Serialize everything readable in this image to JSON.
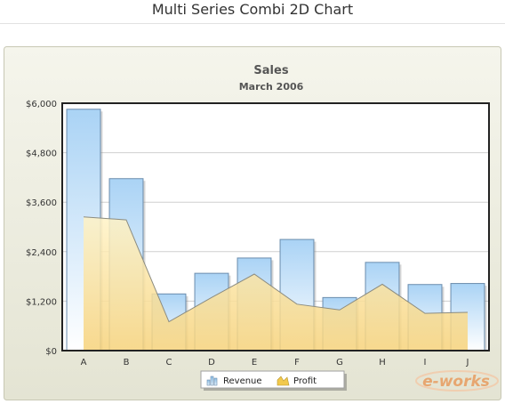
{
  "page": {
    "title": "Multi Series Combi 2D Chart"
  },
  "chart_data": {
    "type": "bar",
    "title": "Sales",
    "subtitle": "March 2006",
    "categories": [
      "A",
      "B",
      "C",
      "D",
      "E",
      "F",
      "G",
      "H",
      "I",
      "J"
    ],
    "series": [
      {
        "name": "Revenue",
        "render": "column",
        "values": [
          5854,
          4171,
          1375,
          1875,
          2246,
          2696,
          1287,
          2140,
          1603,
          1628
        ]
      },
      {
        "name": "Profit",
        "render": "area",
        "values": [
          3242,
          3171,
          700,
          1287,
          1856,
          1126,
          987,
          1610,
          903,
          928
        ]
      }
    ],
    "y_ticks": [
      "$0",
      "$1,200",
      "$2,400",
      "$3,600",
      "$4,800",
      "$6,000"
    ],
    "ylim": [
      0,
      6000
    ],
    "grid": true,
    "legend_position": "bottom",
    "colors": {
      "revenue_top": "#aad3f5",
      "revenue_bottom": "#ffffff",
      "revenue_border": "#6b8cad",
      "profit_top": "#fff3c7",
      "profit_bottom": "#f6d27a",
      "profit_line": "#8c8c80",
      "background_top": "#f5f5ec",
      "background_bottom": "#e4e4d3"
    },
    "watermark": "e-works"
  }
}
